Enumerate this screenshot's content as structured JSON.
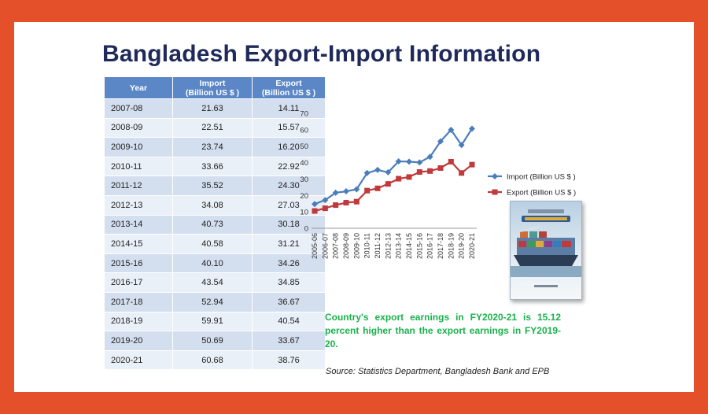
{
  "title": "Bangladesh Export-Import Information",
  "table": {
    "headers": [
      {
        "line1": "Year",
        "line2": ""
      },
      {
        "line1": "Import",
        "line2": "(Billion US $ )"
      },
      {
        "line1": "Export",
        "line2": "(Billion US $ )"
      }
    ],
    "rows": [
      [
        "2007-08",
        "21.63",
        "14.11"
      ],
      [
        "2008-09",
        "22.51",
        "15.57"
      ],
      [
        "2009-10",
        "23.74",
        "16.20"
      ],
      [
        "2010-11",
        "33.66",
        "22.92"
      ],
      [
        "2011-12",
        "35.52",
        "24.30"
      ],
      [
        "2012-13",
        "34.08",
        "27.03"
      ],
      [
        "2013-14",
        "40.73",
        "30.18"
      ],
      [
        "2014-15",
        "40.58",
        "31.21"
      ],
      [
        "2015-16",
        "40.10",
        "34.26"
      ],
      [
        "2016-17",
        "43.54",
        "34.85"
      ],
      [
        "2017-18",
        "52.94",
        "36.67"
      ],
      [
        "2018-19",
        "59.91",
        "40.54"
      ],
      [
        "2019-20",
        "50.69",
        "33.67"
      ],
      [
        "2020-21",
        "60.68",
        "38.76"
      ]
    ]
  },
  "chart_data": {
    "type": "line",
    "title": "",
    "xlabel": "",
    "ylabel": "",
    "x": [
      "2005-06",
      "2006-07",
      "2007-08",
      "2008-09",
      "2009-10",
      "2010-11",
      "2011-12",
      "2012-13",
      "2013-14",
      "2014-15",
      "2015-16",
      "2016-17",
      "2017-18",
      "2018-19",
      "2019-20",
      "2020-21"
    ],
    "ylim": [
      0,
      70
    ],
    "yticks": [
      0,
      10,
      20,
      30,
      40,
      50,
      60,
      70
    ],
    "grid": false,
    "legend": "right",
    "series": [
      {
        "name": "Import (Billion US $ )",
        "color": "#4a7ebb",
        "marker": "diamond",
        "values": [
          14.75,
          17.16,
          21.63,
          22.51,
          23.74,
          33.66,
          35.52,
          34.08,
          40.73,
          40.58,
          40.1,
          43.54,
          52.94,
          59.91,
          50.69,
          60.68
        ]
      },
      {
        "name": "Export (Billion US $ )",
        "color": "#c0393b",
        "marker": "square",
        "values": [
          10.53,
          12.18,
          14.11,
          15.57,
          16.2,
          22.92,
          24.3,
          27.03,
          30.18,
          31.21,
          34.26,
          34.85,
          36.67,
          40.54,
          33.67,
          38.76
        ]
      }
    ]
  },
  "book": {
    "icon": "book-cover-image"
  },
  "note": "Country's export earnings in FY2020-21 is 15.12 percent higher than the export earnings in FY2019-20.",
  "source": "Source: Statistics Department, Bangladesh Bank and EPB"
}
